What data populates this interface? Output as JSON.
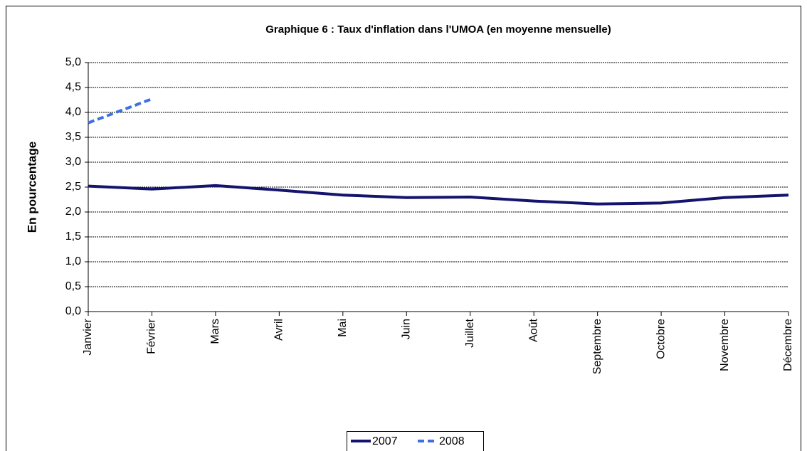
{
  "chart_data": {
    "type": "line",
    "title": "Graphique 6 : Taux d'inflation dans l'UMOA (en moyenne mensuelle)",
    "y_label": "En pourcentage",
    "categories": [
      "Janvier",
      "Février",
      "Mars",
      "Avril",
      "Mai",
      "Juin",
      "Juillet",
      "Août",
      "Septembre",
      "Octobre",
      "Novembre",
      "Décembre"
    ],
    "series": [
      {
        "name": "2007",
        "color": "#14146e",
        "dash": false,
        "values": [
          2.52,
          2.46,
          2.53,
          2.44,
          2.34,
          2.29,
          2.3,
          2.22,
          2.16,
          2.18,
          2.29,
          2.34
        ]
      },
      {
        "name": "2008",
        "color": "#3f6fe3",
        "dash": true,
        "values": [
          3.79,
          4.27,
          null,
          null,
          null,
          null,
          null,
          null,
          null,
          null,
          null,
          null
        ]
      }
    ],
    "ylim": [
      0,
      5
    ],
    "yticks": [
      {
        "value": 0,
        "label": "0,0"
      },
      {
        "value": 0.5,
        "label": "0,5"
      },
      {
        "value": 1,
        "label": "1,0"
      },
      {
        "value": 1.5,
        "label": "1,5"
      },
      {
        "value": 2,
        "label": "2,0"
      },
      {
        "value": 2.5,
        "label": "2,5"
      },
      {
        "value": 3,
        "label": "3,0"
      },
      {
        "value": 3.5,
        "label": "3,5"
      },
      {
        "value": 4,
        "label": "4,0"
      },
      {
        "value": 4.5,
        "label": "4,5"
      },
      {
        "value": 5,
        "label": "5,0"
      }
    ],
    "grid": true,
    "legend": "bottom"
  }
}
